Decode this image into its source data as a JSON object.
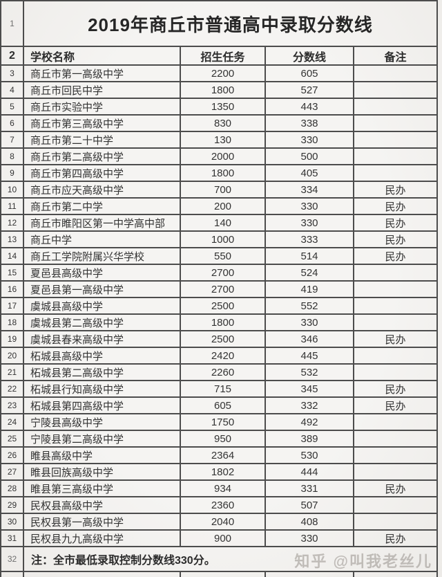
{
  "title": "2019年商丘市普通高中录取分数线",
  "watermark": "知乎 @叫我老丝儿",
  "colors": {
    "background": "#f4f3f1",
    "grid_line": "#4c4c4c",
    "text": "#303030",
    "row_number_text": "#6e6e6e",
    "watermark_text": "#97928d"
  },
  "table": {
    "row_numbers": {
      "title_row": "1",
      "header_row": "2",
      "note_row": "32"
    },
    "columns": [
      "学校名称",
      "招生任务",
      "分数线",
      "备注"
    ],
    "rows": [
      {
        "row": "3",
        "school": "商丘市第一高级中学",
        "quota": "2200",
        "score": "605",
        "remark": ""
      },
      {
        "row": "4",
        "school": "商丘市回民中学",
        "quota": "1800",
        "score": "527",
        "remark": ""
      },
      {
        "row": "5",
        "school": "商丘市实验中学",
        "quota": "1350",
        "score": "443",
        "remark": ""
      },
      {
        "row": "6",
        "school": "商丘市第三高级中学",
        "quota": "830",
        "score": "338",
        "remark": ""
      },
      {
        "row": "7",
        "school": "商丘市第二十中学",
        "quota": "130",
        "score": "330",
        "remark": ""
      },
      {
        "row": "8",
        "school": "商丘市第二高级中学",
        "quota": "2000",
        "score": "500",
        "remark": ""
      },
      {
        "row": "9",
        "school": "商丘市第四高级中学",
        "quota": "1800",
        "score": "405",
        "remark": ""
      },
      {
        "row": "10",
        "school": "商丘市应天高级中学",
        "quota": "700",
        "score": "334",
        "remark": "民办"
      },
      {
        "row": "11",
        "school": "商丘市第二中学",
        "quota": "200",
        "score": "330",
        "remark": "民办"
      },
      {
        "row": "12",
        "school": "商丘市睢阳区第一中学高中部",
        "quota": "140",
        "score": "330",
        "remark": "民办"
      },
      {
        "row": "13",
        "school": "商丘中学",
        "quota": "1000",
        "score": "333",
        "remark": "民办"
      },
      {
        "row": "14",
        "school": "商丘工学院附属兴华学校",
        "quota": "550",
        "score": "514",
        "remark": "民办"
      },
      {
        "row": "15",
        "school": "夏邑县高级中学",
        "quota": "2700",
        "score": "524",
        "remark": ""
      },
      {
        "row": "16",
        "school": "夏邑县第一高级中学",
        "quota": "2700",
        "score": "419",
        "remark": ""
      },
      {
        "row": "17",
        "school": "虞城县高级中学",
        "quota": "2500",
        "score": "552",
        "remark": ""
      },
      {
        "row": "18",
        "school": "虞城县第二高级中学",
        "quota": "1800",
        "score": "330",
        "remark": ""
      },
      {
        "row": "19",
        "school": "虞城县春来高级中学",
        "quota": "2500",
        "score": "346",
        "remark": "民办"
      },
      {
        "row": "20",
        "school": "柘城县高级中学",
        "quota": "2420",
        "score": "445",
        "remark": ""
      },
      {
        "row": "21",
        "school": "柘城县第二高级中学",
        "quota": "2260",
        "score": "532",
        "remark": ""
      },
      {
        "row": "22",
        "school": "柘城县行知高级中学",
        "quota": "715",
        "score": "345",
        "remark": "民办"
      },
      {
        "row": "23",
        "school": "柘城县第四高级中学",
        "quota": "605",
        "score": "332",
        "remark": "民办"
      },
      {
        "row": "24",
        "school": "宁陵县高级中学",
        "quota": "1750",
        "score": "492",
        "remark": ""
      },
      {
        "row": "25",
        "school": "宁陵县第二高级中学",
        "quota": "950",
        "score": "389",
        "remark": ""
      },
      {
        "row": "26",
        "school": "睢县高级中学",
        "quota": "2364",
        "score": "530",
        "remark": ""
      },
      {
        "row": "27",
        "school": "睢县回族高级中学",
        "quota": "1802",
        "score": "444",
        "remark": ""
      },
      {
        "row": "28",
        "school": "睢县第三高级中学",
        "quota": "934",
        "score": "331",
        "remark": "民办"
      },
      {
        "row": "29",
        "school": "民权县高级中学",
        "quota": "2360",
        "score": "507",
        "remark": ""
      },
      {
        "row": "30",
        "school": "民权县第一高级中学",
        "quota": "2040",
        "score": "408",
        "remark": ""
      },
      {
        "row": "31",
        "school": "民权县九九高级中学",
        "quota": "900",
        "score": "330",
        "remark": "民办"
      }
    ],
    "note": "注：全市最低录取控制分数线330分。"
  }
}
